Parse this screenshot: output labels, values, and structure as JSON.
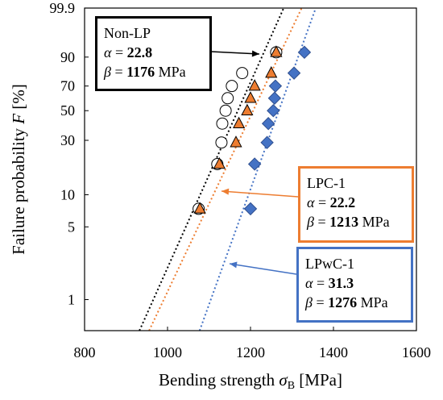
{
  "chart_data": {
    "type": "scatter",
    "xlabel_main": "Bending strength ",
    "xlabel_symbol": "σ",
    "xlabel_sub": "B",
    "xlabel_unit": " [MPa]",
    "ylabel_main": "Failure probability ",
    "ylabel_symbol": "F",
    "ylabel_unit": " [%]",
    "x_ticks": [
      800,
      1000,
      1200,
      1400,
      1600
    ],
    "y_ticks": [
      1,
      5,
      10,
      30,
      50,
      70,
      90,
      99.9
    ],
    "xlim": [
      800,
      1600
    ],
    "ylim": [
      0.5,
      99.9
    ],
    "y_scale": "weibull",
    "series": [
      {
        "name": "Non-LP",
        "marker": "circle",
        "color": "#ffffff",
        "edge": "#000000",
        "line_color": "#000000",
        "alpha": 22.8,
        "beta": 1176,
        "x": [
          1075,
          1120,
          1130,
          1132,
          1140,
          1145,
          1155,
          1180,
          1262
        ],
        "y": [
          7.4,
          18.9,
          28.8,
          40.5,
          50,
          60,
          70,
          80,
          92.3
        ]
      },
      {
        "name": "LPC-1",
        "marker": "triangle",
        "color": "#ed7d31",
        "edge": "#000000",
        "line_color": "#ed7d31",
        "alpha": 22.2,
        "beta": 1213,
        "x": [
          1078,
          1125,
          1165,
          1172,
          1192,
          1200,
          1210,
          1250,
          1262
        ],
        "y": [
          7.4,
          18.9,
          28.8,
          40.5,
          50,
          60,
          70,
          80,
          92.3
        ]
      },
      {
        "name": "LPwC-1",
        "marker": "diamond",
        "color": "#4472c4",
        "edge": "#2f4f8f",
        "line_color": "#4472c4",
        "alpha": 31.3,
        "beta": 1276,
        "x": [
          1200,
          1210,
          1240,
          1243,
          1255,
          1258,
          1260,
          1305,
          1330
        ],
        "y": [
          7.4,
          18.9,
          28.8,
          40.5,
          50,
          60,
          70,
          80,
          92.3
        ]
      }
    ],
    "legend": {
      "alpha_symbol": "α",
      "beta_symbol": "β",
      "eq": " = ",
      "unit": " MPa"
    }
  }
}
